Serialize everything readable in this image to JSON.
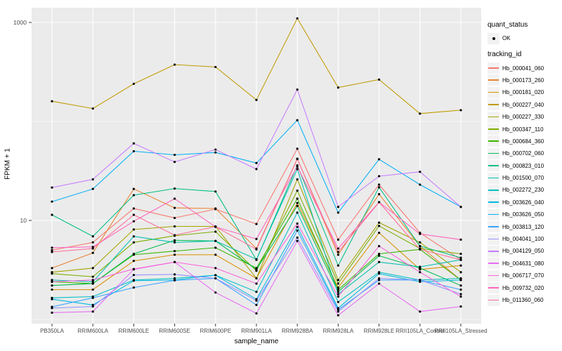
{
  "figure": {
    "background": "#FFFFFF",
    "panel_background": "#EBEBEB",
    "gridline_color": "#FFFFFF",
    "point_color": "#000000",
    "tick_color": "#333333",
    "tick_label_color": "#4D4D4D"
  },
  "axes": {
    "x": {
      "title": "sample_name"
    },
    "y": {
      "title": "FPKM + 1",
      "tick_labels": [
        "1000",
        "10"
      ]
    }
  },
  "legend": {
    "quant_status": {
      "title": "quant_status",
      "items": [
        {
          "label": "OK"
        }
      ]
    },
    "tracking_id": {
      "title": "tracking_id"
    }
  },
  "chart_data": {
    "type": "line",
    "title": "",
    "xlabel": "sample_name",
    "ylabel": "FPKM + 1",
    "yscale": "log10",
    "ylim": [
      0.9,
      1400
    ],
    "y_major_breaks": [
      1000,
      10
    ],
    "y_minor_breaks": [
      100,
      1
    ],
    "grid": true,
    "legend_position": "right",
    "marker": "black point",
    "quant_status": "OK",
    "x_categories": [
      "PB350LA",
      "RRIM600LA",
      "RRIM600LE",
      "RRIM600SE",
      "RRIM600PE",
      "RRIM901LA",
      "RRIM928BA",
      "RRIM928LA",
      "RRIM928LE",
      "RRII105LA_Control",
      "RRII105LA_Stressed"
    ],
    "series": [
      {
        "name": "Hb_000041_060",
        "color": "#F8766D",
        "values": [
          5.0,
          6.0,
          13.2,
          10.6,
          13.0,
          9.2,
          53,
          6.4,
          23,
          7.5,
          4.0
        ]
      },
      {
        "name": "Hb_000173_260",
        "color": "#EA8331",
        "values": [
          3.3,
          4.7,
          20.8,
          13.4,
          13.2,
          5.2,
          42,
          4.5,
          18.4,
          5.5,
          2.5
        ]
      },
      {
        "name": "Hb_000181_020",
        "color": "#D89000",
        "values": [
          2.0,
          2.0,
          3.9,
          4.5,
          4.5,
          2.6,
          15,
          2.1,
          7.5,
          3.2,
          3.5
        ]
      },
      {
        "name": "Hb_000227_040",
        "color": "#C09B00",
        "values": [
          160,
          135,
          240,
          375,
          355,
          165,
          1100,
          220,
          265,
          120,
          130
        ]
      },
      {
        "name": "Hb_000227_330",
        "color": "#A3A500",
        "values": [
          3.0,
          3.3,
          8.1,
          8.7,
          8.7,
          2.6,
          26,
          2.5,
          9.5,
          6.0,
          3.0
        ]
      },
      {
        "name": "Hb_000347_110",
        "color": "#7CAE00",
        "values": [
          2.9,
          2.7,
          6.0,
          7.0,
          7.7,
          3.1,
          20,
          2.3,
          8.8,
          5.2,
          4.6
        ]
      },
      {
        "name": "Hb_000684_360",
        "color": "#39B600",
        "values": [
          2.4,
          2.3,
          4.5,
          4.9,
          5.3,
          3.3,
          16.6,
          2.0,
          4.6,
          5.1,
          2.5
        ]
      },
      {
        "name": "Hb_000702_060",
        "color": "#00BB4E",
        "values": [
          2.2,
          2.3,
          4.6,
          6.3,
          6.2,
          3.2,
          14,
          1.9,
          4.4,
          3.3,
          2.2
        ]
      },
      {
        "name": "Hb_000823_010",
        "color": "#00C087",
        "values": [
          11.4,
          6.9,
          18,
          21,
          19.6,
          4.0,
          36,
          3.5,
          21.6,
          5.5,
          4.2
        ]
      },
      {
        "name": "Hb_001500_070",
        "color": "#00C0AF",
        "values": [
          2.5,
          2.4,
          6.9,
          6.0,
          6.2,
          4.05,
          33,
          1.8,
          3.8,
          3.4,
          4.0
        ]
      },
      {
        "name": "Hb_002272_230",
        "color": "#00BFC4",
        "values": [
          1.65,
          1.7,
          2.5,
          2.6,
          2.8,
          1.9,
          12,
          1.5,
          3.0,
          2.5,
          2.6
        ]
      },
      {
        "name": "Hb_003626_040",
        "color": "#00BAE0",
        "values": [
          1.6,
          1.4,
          2.46,
          2.5,
          2.8,
          1.6,
          8.6,
          1.3,
          2.9,
          2.4,
          2.5
        ]
      },
      {
        "name": "Hb_003626_050",
        "color": "#00B0F6",
        "values": [
          15.5,
          20.8,
          50,
          46,
          48.6,
          38,
          103,
          12,
          41.5,
          23,
          13.7
        ]
      },
      {
        "name": "Hb_003813_120",
        "color": "#35A2FF",
        "values": [
          1.34,
          1.65,
          2.1,
          2.48,
          2.6,
          1.4,
          7.9,
          1.25,
          2.5,
          2.5,
          2.0
        ]
      },
      {
        "name": "Hb_004041_100",
        "color": "#9590FF",
        "values": [
          1.3,
          1.35,
          2.81,
          2.85,
          2.6,
          1.55,
          6.7,
          1.2,
          2.6,
          2.5,
          1.8
        ]
      },
      {
        "name": "Hb_004129_050",
        "color": "#C77CFF",
        "values": [
          21.5,
          26,
          60,
          39,
          52,
          33,
          210,
          13.7,
          28,
          31,
          13.7
        ]
      },
      {
        "name": "Hb_004631_080",
        "color": "#E76BF3",
        "values": [
          1.17,
          1.2,
          3.2,
          3.8,
          1.87,
          1.15,
          6.2,
          1.1,
          2.3,
          1.2,
          1.35
        ]
      },
      {
        "name": "Hb_006717_070",
        "color": "#FA62DB",
        "values": [
          2.4,
          2.5,
          3.23,
          3.8,
          3.3,
          2.3,
          9.3,
          1.7,
          5.5,
          3.0,
          1.7
        ]
      },
      {
        "name": "Hb_009732_020",
        "color": "#FF62BC",
        "values": [
          5.3,
          5.4,
          9.8,
          16.6,
          8.6,
          6.5,
          35,
          5.2,
          15.3,
          7.3,
          6.4
        ]
      },
      {
        "name": "Hb_011360_060",
        "color": "#FF6A98",
        "values": [
          4.8,
          5.2,
          11.4,
          7.1,
          8.65,
          5.1,
          41.7,
          4.8,
          15.3,
          5.1,
          4.0
        ]
      }
    ]
  }
}
